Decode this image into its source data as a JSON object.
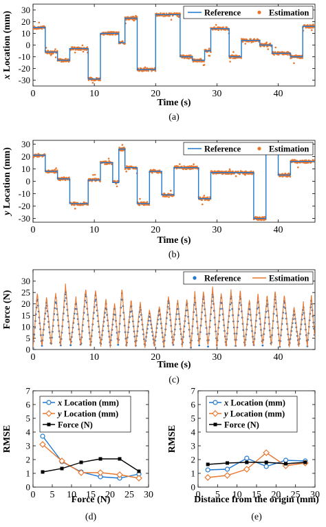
{
  "colors": {
    "reference": "#1f77d0",
    "estimation": "#e8762d",
    "force": "#000000"
  },
  "chart_data": [
    {
      "id": "a",
      "type": "line",
      "caption": "(a)",
      "xlabel": "Time (s)",
      "ylabel_italic": "x",
      "ylabel_rest": " Location (mm)",
      "xlim": [
        0,
        46
      ],
      "ylim": [
        -35,
        35
      ],
      "xticks": [
        0,
        10,
        20,
        30,
        40
      ],
      "yticks": [
        -30,
        -20,
        -10,
        0,
        10,
        20,
        30
      ],
      "legend_position": "top-right",
      "legend": [
        "Reference",
        "Estimation"
      ],
      "steps": [
        [
          0,
          15
        ],
        [
          2,
          -6
        ],
        [
          4,
          -13
        ],
        [
          6,
          -3
        ],
        [
          9,
          -29
        ],
        [
          11,
          10
        ],
        [
          14,
          2
        ],
        [
          15,
          23
        ],
        [
          17,
          -21
        ],
        [
          20,
          26
        ],
        [
          24,
          -10
        ],
        [
          26,
          -13
        ],
        [
          28,
          -5
        ],
        [
          29,
          14
        ],
        [
          32,
          -10
        ],
        [
          34,
          4
        ],
        [
          37,
          0
        ],
        [
          39,
          -7
        ],
        [
          42,
          -10
        ],
        [
          44,
          16
        ]
      ],
      "x_end": 46
    },
    {
      "id": "b",
      "type": "line",
      "caption": "(b)",
      "xlabel": "Time (s)",
      "ylabel_italic": "y",
      "ylabel_rest": " Location (mm)",
      "xlim": [
        0,
        46
      ],
      "ylim": [
        -33,
        33
      ],
      "xticks": [
        0,
        10,
        20,
        30,
        40
      ],
      "yticks": [
        -30,
        -20,
        -10,
        0,
        10,
        20,
        30
      ],
      "legend_position": "top-right",
      "legend": [
        "Reference",
        "Estimation"
      ],
      "steps": [
        [
          0,
          21
        ],
        [
          2,
          8
        ],
        [
          4,
          2
        ],
        [
          6,
          -18
        ],
        [
          9,
          1
        ],
        [
          11,
          15
        ],
        [
          13,
          -1
        ],
        [
          14,
          26
        ],
        [
          15,
          11
        ],
        [
          17,
          -18
        ],
        [
          19,
          8
        ],
        [
          21,
          -11
        ],
        [
          23,
          11
        ],
        [
          27,
          -14
        ],
        [
          29,
          7
        ],
        [
          36,
          -30
        ],
        [
          38,
          26
        ],
        [
          40,
          5
        ],
        [
          42,
          16
        ]
      ],
      "x_end": 46
    },
    {
      "id": "c",
      "type": "line",
      "caption": "(c)",
      "xlabel": "Time (s)",
      "ylabel": "Force (N)",
      "xlim": [
        0,
        46
      ],
      "ylim": [
        0,
        35
      ],
      "xticks": [
        0,
        10,
        20,
        30,
        40
      ],
      "yticks": [
        0,
        5,
        10,
        15,
        20,
        25,
        30
      ],
      "legend_position": "top-right",
      "legend": [
        "Reference",
        "Estimation"
      ],
      "peaks": [
        [
          0.7,
          23
        ],
        [
          2.2,
          21
        ],
        [
          3.7,
          23
        ],
        [
          5.3,
          26
        ],
        [
          7.0,
          21
        ],
        [
          8.6,
          25
        ],
        [
          10.2,
          24
        ],
        [
          11.9,
          20
        ],
        [
          13.3,
          19
        ],
        [
          14.5,
          25
        ],
        [
          16.0,
          20
        ],
        [
          17.5,
          19
        ],
        [
          19.0,
          16
        ],
        [
          20.6,
          18
        ],
        [
          22.1,
          22
        ],
        [
          23.6,
          20
        ],
        [
          25.1,
          21
        ],
        [
          26.4,
          23
        ],
        [
          27.8,
          24
        ],
        [
          29.3,
          25
        ],
        [
          30.7,
          23
        ],
        [
          32.3,
          24
        ],
        [
          33.8,
          24
        ],
        [
          35.3,
          20
        ],
        [
          36.7,
          22
        ],
        [
          38.2,
          22
        ],
        [
          39.5,
          24
        ],
        [
          41.0,
          22
        ],
        [
          42.6,
          17
        ],
        [
          44.1,
          19
        ],
        [
          45.4,
          22
        ]
      ],
      "valleys": [
        0,
        1.4,
        1.5,
        1.2,
        1.6,
        1.2,
        1.4,
        1.6,
        1.3,
        1.5,
        1.3,
        1.5,
        1.2,
        1.6,
        1.4,
        1.3,
        1.6,
        0.5,
        1.5,
        1.3,
        1.6,
        1.4,
        1.6,
        1.3,
        1.4,
        1.5,
        1.4,
        1.2,
        1.5,
        1.4,
        1.4,
        4
      ]
    },
    {
      "id": "d",
      "type": "line",
      "caption": "(d)",
      "xlabel": "Force (N)",
      "ylabel": "RMSE",
      "xlim": [
        0,
        30
      ],
      "ylim": [
        0,
        7
      ],
      "xticks": [
        0,
        5,
        10,
        15,
        20,
        25,
        30
      ],
      "yticks": [
        0,
        1,
        2,
        3,
        4,
        5,
        6,
        7
      ],
      "legend_position": "top-right",
      "x": [
        2.5,
        7.5,
        12.5,
        17.5,
        22.5,
        27.5
      ],
      "series": [
        {
          "name_italic": "x",
          "name_rest": " Location (mm)",
          "marker": "circle",
          "values": [
            3.7,
            1.85,
            1.1,
            0.75,
            0.65,
            0.95
          ]
        },
        {
          "name_italic": "y",
          "name_rest": " Location (mm)",
          "marker": "diamond",
          "values": [
            3.1,
            1.9,
            1.05,
            1.05,
            0.9,
            0.65
          ]
        },
        {
          "name": "Force (N)",
          "marker": "square",
          "values": [
            1.1,
            1.35,
            1.8,
            2.05,
            2.05,
            1.15
          ]
        }
      ]
    },
    {
      "id": "e",
      "type": "line",
      "caption": "(e)",
      "xlabel": "Distance from the origin (mm)",
      "ylabel": "RMSE",
      "xlim": [
        0,
        30
      ],
      "ylim": [
        0,
        7
      ],
      "xticks": [
        0,
        5,
        10,
        15,
        20,
        25,
        30
      ],
      "yticks": [
        0,
        1,
        2,
        3,
        4,
        5,
        6,
        7
      ],
      "legend_position": "top-right",
      "x": [
        2.5,
        7.5,
        12.5,
        17.5,
        22.5,
        27.5
      ],
      "series": [
        {
          "name_italic": "x",
          "name_rest": " Location (mm)",
          "marker": "circle",
          "values": [
            1.25,
            1.3,
            2.1,
            1.5,
            1.95,
            1.9
          ]
        },
        {
          "name_italic": "y",
          "name_rest": " Location (mm)",
          "marker": "diamond",
          "values": [
            0.7,
            0.85,
            1.3,
            2.5,
            1.55,
            1.75
          ]
        },
        {
          "name": "Force (N)",
          "marker": "square",
          "values": [
            1.65,
            1.75,
            1.8,
            1.8,
            1.7,
            1.8
          ]
        }
      ]
    }
  ]
}
